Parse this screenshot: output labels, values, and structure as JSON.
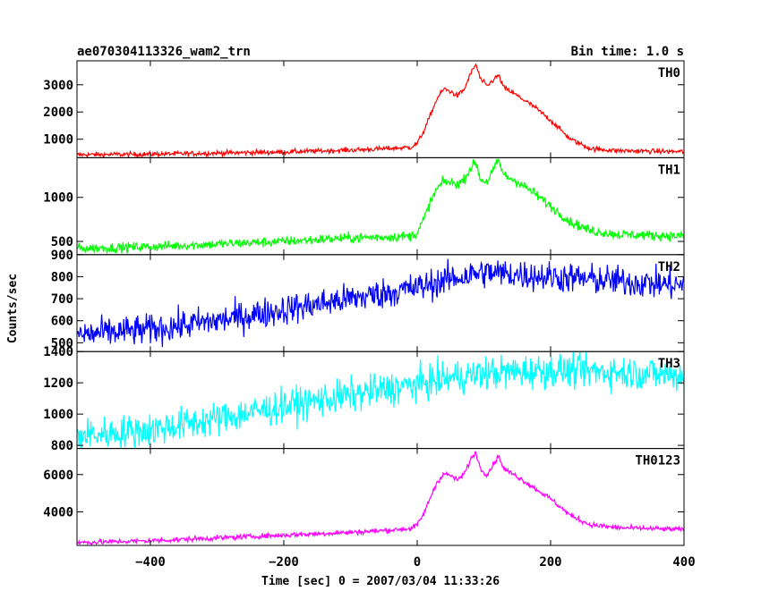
{
  "header": {
    "title": "ae070304113326_wam2_trn",
    "bin_time": "Bin time: 1.0 s"
  },
  "chart_data": {
    "type": "line",
    "xlabel": "Time [sec] 0 = 2007/03/04 11:33:26",
    "ylabel": "Counts/sec",
    "xlim": [
      -510,
      400
    ],
    "xticks": [
      -400,
      -200,
      0,
      200,
      400
    ],
    "series": [
      {
        "name": "TH0",
        "color": "#ff0000",
        "ylim": [
          320,
          3880
        ],
        "yticks": [
          1000,
          2000,
          3000
        ],
        "noise": 45,
        "x": [
          -510,
          -400,
          -200,
          -100,
          -50,
          -10,
          0,
          10,
          20,
          30,
          40,
          50,
          60,
          70,
          80,
          88,
          95,
          105,
          115,
          122,
          130,
          150,
          175,
          200,
          230,
          260,
          300,
          350,
          400
        ],
        "y": [
          430,
          450,
          530,
          600,
          650,
          700,
          850,
          1300,
          1900,
          2500,
          2850,
          2750,
          2600,
          2800,
          3400,
          3750,
          3200,
          2950,
          3200,
          3350,
          2900,
          2600,
          2200,
          1700,
          1000,
          650,
          580,
          560,
          540
        ]
      },
      {
        "name": "TH1",
        "color": "#00ff00",
        "ylim": [
          350,
          1450
        ],
        "yticks": [
          500,
          1000
        ],
        "noise": 28,
        "x": [
          -510,
          -400,
          -200,
          -100,
          -50,
          -10,
          0,
          10,
          20,
          30,
          40,
          50,
          60,
          70,
          80,
          88,
          95,
          105,
          115,
          122,
          130,
          150,
          175,
          200,
          230,
          260,
          300,
          350,
          400
        ],
        "y": [
          420,
          440,
          500,
          540,
          550,
          560,
          600,
          750,
          950,
          1100,
          1180,
          1170,
          1150,
          1200,
          1330,
          1400,
          1200,
          1180,
          1320,
          1420,
          1250,
          1180,
          1050,
          900,
          720,
          620,
          580,
          570,
          560
        ]
      },
      {
        "name": "TH2",
        "color": "#0000ff",
        "ylim": [
          460,
          900
        ],
        "yticks": [
          500,
          600,
          700,
          800,
          900
        ],
        "noise": 35,
        "x": [
          -510,
          -400,
          -300,
          -200,
          -100,
          0,
          50,
          100,
          150,
          200,
          300,
          400
        ],
        "y": [
          535,
          560,
          600,
          650,
          700,
          750,
          790,
          820,
          810,
          800,
          780,
          760
        ]
      },
      {
        "name": "TH3",
        "color": "#00ffff",
        "ylim": [
          780,
          1400
        ],
        "yticks": [
          800,
          1000,
          1200,
          1400
        ],
        "noise": 55,
        "x": [
          -510,
          -400,
          -300,
          -200,
          -100,
          0,
          50,
          100,
          150,
          200,
          300,
          400
        ],
        "y": [
          860,
          900,
          970,
          1050,
          1120,
          1190,
          1230,
          1260,
          1270,
          1280,
          1270,
          1250
        ]
      },
      {
        "name": "TH0123",
        "color": "#ff00ff",
        "ylim": [
          2200,
          7400
        ],
        "yticks": [
          4000,
          6000
        ],
        "noise": 70,
        "x": [
          -510,
          -400,
          -200,
          -100,
          -50,
          -10,
          0,
          10,
          20,
          30,
          40,
          50,
          60,
          70,
          80,
          88,
          95,
          105,
          115,
          122,
          130,
          150,
          175,
          200,
          230,
          260,
          300,
          350,
          400
        ],
        "y": [
          2350,
          2450,
          2750,
          2900,
          3000,
          3100,
          3300,
          3900,
          4800,
          5600,
          6050,
          5950,
          5700,
          6000,
          6800,
          7200,
          6300,
          6000,
          6600,
          7000,
          6300,
          5900,
          5300,
          4700,
          3800,
          3300,
          3150,
          3100,
          3050
        ]
      }
    ]
  }
}
